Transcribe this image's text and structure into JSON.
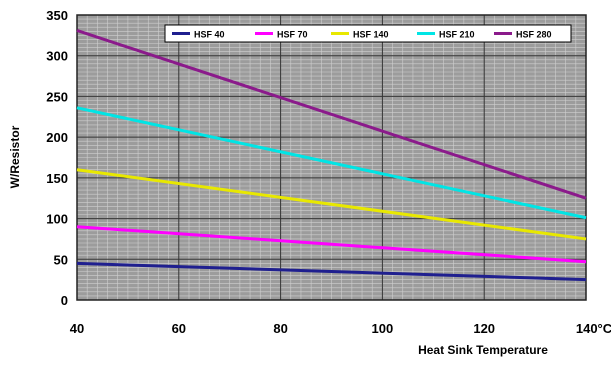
{
  "chart_data": {
    "type": "line",
    "xlabel": "Heat Sink Temperature",
    "ylabel": "W/Resistor",
    "xlim": [
      40,
      140
    ],
    "ylim": [
      0,
      350
    ],
    "x_ticks": [
      "40",
      "60",
      "80",
      "100",
      "120",
      "140°C"
    ],
    "y_ticks": [
      "0",
      "50",
      "100",
      "150",
      "200",
      "250",
      "300",
      "350"
    ],
    "grid": true,
    "legend_position": "top",
    "series": [
      {
        "name": "HSF 40",
        "color": "#1f1f8f",
        "x": [
          40,
          140
        ],
        "y": [
          45,
          25
        ]
      },
      {
        "name": "HSF 70",
        "color": "#ff00ff",
        "x": [
          40,
          140
        ],
        "y": [
          90,
          47
        ]
      },
      {
        "name": "HSF 140",
        "color": "#e8e800",
        "x": [
          40,
          140
        ],
        "y": [
          160,
          75
        ]
      },
      {
        "name": "HSF 210",
        "color": "#00e5e5",
        "x": [
          40,
          140
        ],
        "y": [
          236,
          101
        ]
      },
      {
        "name": "HSF 280",
        "color": "#8b1a8b",
        "x": [
          40,
          140
        ],
        "y": [
          331,
          125
        ]
      }
    ]
  }
}
